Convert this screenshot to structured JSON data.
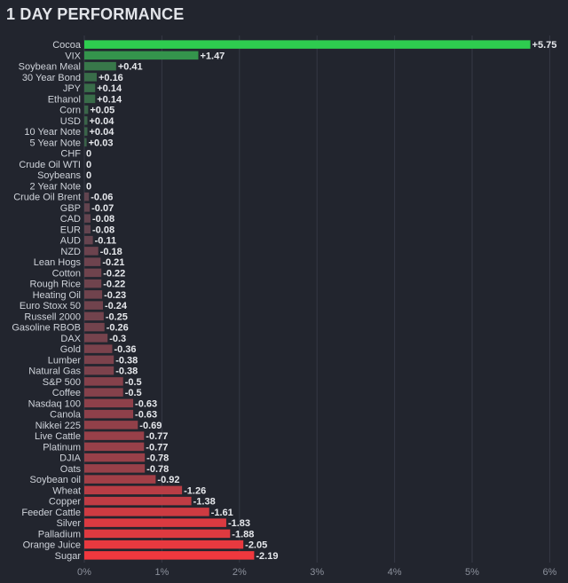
{
  "title": "1 DAY PERFORMANCE",
  "chart_data": {
    "type": "bar",
    "orientation": "horizontal",
    "title": "1 DAY PERFORMANCE",
    "categories": [
      "Cocoa",
      "VIX",
      "Soybean Meal",
      "30 Year Bond",
      "JPY",
      "Ethanol",
      "Corn",
      "USD",
      "10 Year Note",
      "5 Year Note",
      "CHF",
      "Crude Oil WTI",
      "Soybeans",
      "2 Year Note",
      "Crude Oil Brent",
      "GBP",
      "CAD",
      "EUR",
      "AUD",
      "NZD",
      "Lean Hogs",
      "Cotton",
      "Rough Rice",
      "Heating Oil",
      "Euro Stoxx 50",
      "Russell 2000",
      "Gasoline RBOB",
      "DAX",
      "Gold",
      "Lumber",
      "Natural Gas",
      "S&P 500",
      "Coffee",
      "Nasdaq 100",
      "Canola",
      "Nikkei 225",
      "Live Cattle",
      "Platinum",
      "DJIA",
      "Oats",
      "Soybean oil",
      "Wheat",
      "Copper",
      "Feeder Cattle",
      "Silver",
      "Palladium",
      "Orange Juice",
      "Sugar"
    ],
    "values": [
      5.75,
      1.47,
      0.41,
      0.16,
      0.14,
      0.14,
      0.05,
      0.04,
      0.04,
      0.03,
      0,
      0,
      0,
      0,
      -0.06,
      -0.07,
      -0.08,
      -0.08,
      -0.11,
      -0.18,
      -0.21,
      -0.22,
      -0.22,
      -0.23,
      -0.24,
      -0.25,
      -0.26,
      -0.3,
      -0.36,
      -0.38,
      -0.38,
      -0.5,
      -0.5,
      -0.63,
      -0.63,
      -0.69,
      -0.77,
      -0.77,
      -0.78,
      -0.78,
      -0.92,
      -1.26,
      -1.38,
      -1.61,
      -1.83,
      -1.88,
      -2.05,
      -2.19
    ],
    "value_labels": [
      "+5.75",
      "+1.47",
      "+0.41",
      "+0.16",
      "+0.14",
      "+0.14",
      "+0.05",
      "+0.04",
      "+0.04",
      "+0.03",
      "0",
      "0",
      "0",
      "0",
      "-0.06",
      "-0.07",
      "-0.08",
      "-0.08",
      "-0.11",
      "-0.18",
      "-0.21",
      "-0.22",
      "-0.22",
      "-0.23",
      "-0.24",
      "-0.25",
      "-0.26",
      "-0.3",
      "-0.36",
      "-0.38",
      "-0.38",
      "-0.5",
      "-0.5",
      "-0.63",
      "-0.63",
      "-0.69",
      "-0.77",
      "-0.77",
      "-0.78",
      "-0.78",
      "-0.92",
      "-1.26",
      "-1.38",
      "-1.61",
      "-1.83",
      "-1.88",
      "-2.05",
      "-2.19"
    ],
    "xaxis_ticks": [
      "0%",
      "1%",
      "2%",
      "3%",
      "4%",
      "5%",
      "6%"
    ],
    "xlim": [
      0,
      6
    ],
    "bar_length": "absolute value",
    "grid": true,
    "colors": {
      "positive_max": "#2ecc4f",
      "positive_min": "#3b5a48",
      "neutral": "#4a4d57",
      "negative_min": "#5a4550",
      "negative_max": "#f0383e",
      "background": "#22252e",
      "grid": "#353945"
    }
  }
}
